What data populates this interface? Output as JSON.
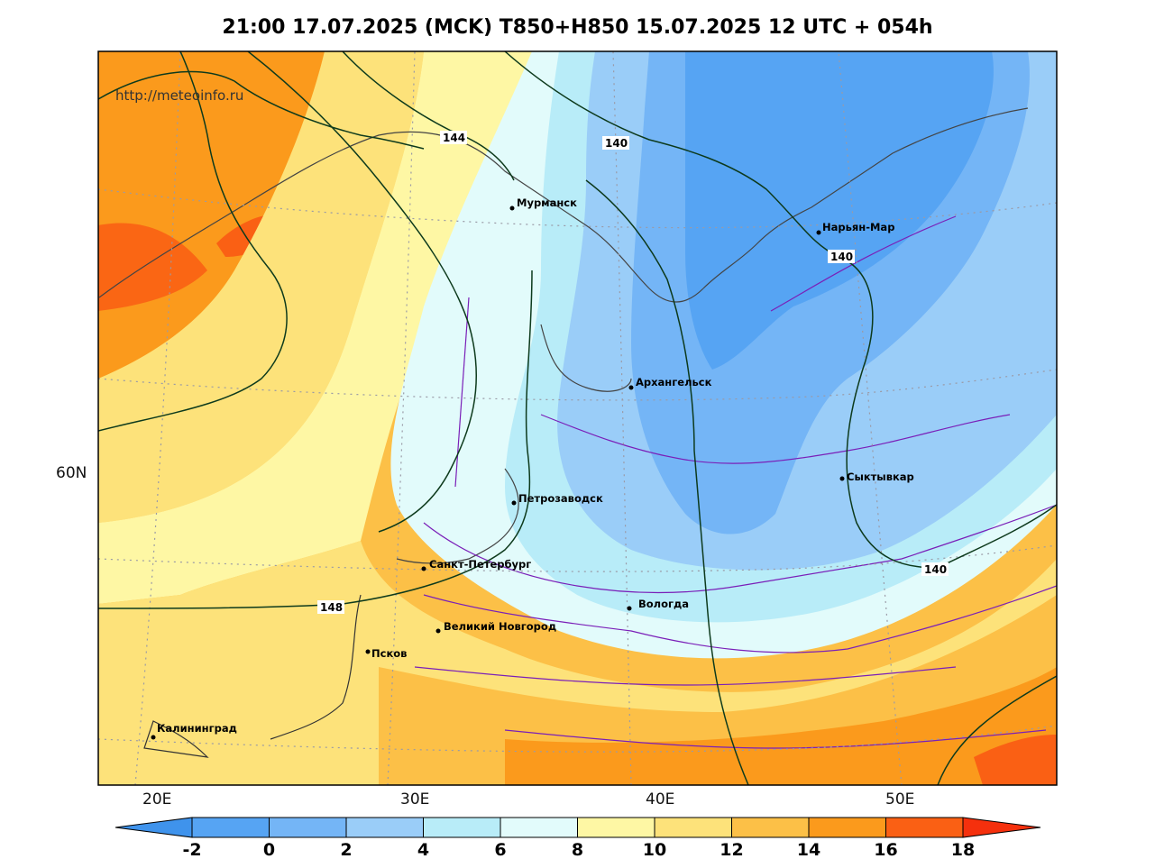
{
  "title": "21:00 17.07.2025 (MCK) T850+H850 15.07.2025 12 UTC + 054h",
  "watermark": "http://meteoinfo.ru",
  "axes": {
    "longitude_labels": [
      "20E",
      "30E",
      "40E",
      "50E"
    ],
    "latitude_labels": [
      "60N"
    ]
  },
  "cities": [
    {
      "id": "murmansk",
      "name": "Мурманск"
    },
    {
      "id": "naryan-mar",
      "name": "Нарьян-Мар"
    },
    {
      "id": "arkhangelsk",
      "name": "Архангельск"
    },
    {
      "id": "syktyvkar",
      "name": "Сыктывкар"
    },
    {
      "id": "petrozavodsk",
      "name": "Петрозаводск"
    },
    {
      "id": "st-petersburg",
      "name": "Санкт-Петербург"
    },
    {
      "id": "vologda",
      "name": "Вологда"
    },
    {
      "id": "veliky-novgorod",
      "name": "Великий Новгород"
    },
    {
      "id": "pskov",
      "name": "Псков"
    },
    {
      "id": "kaliningrad",
      "name": "Калининград"
    }
  ],
  "contours": {
    "variable": "H850",
    "labels": [
      "144",
      "140",
      "140",
      "140",
      "148"
    ]
  },
  "colorbar": {
    "ticks": [
      "-2",
      "0",
      "2",
      "4",
      "6",
      "8",
      "10",
      "12",
      "14",
      "16",
      "18"
    ],
    "colors": [
      "#3f93ec",
      "#56a4f3",
      "#74b5f6",
      "#9acdf8",
      "#b8ecf8",
      "#e2fbfb",
      "#fef7a4",
      "#fde27a",
      "#fcc047",
      "#fb9a1c",
      "#fa6014",
      "#f5300d"
    ]
  }
}
